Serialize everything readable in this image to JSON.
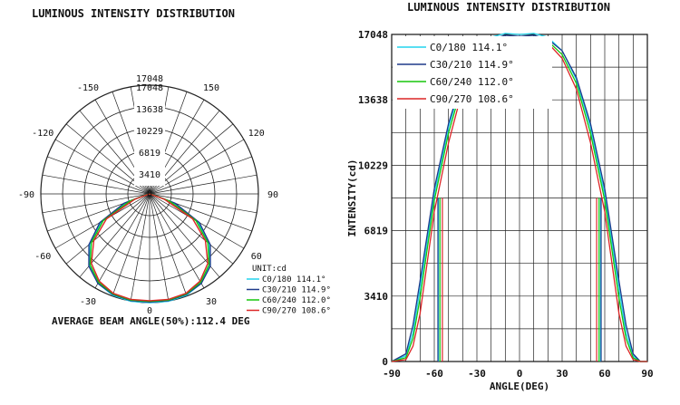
{
  "chart_data": [
    {
      "type": "polar",
      "title": "LUMINOUS INTENSITY DISTRIBUTION",
      "rings": [
        3410,
        6819,
        10229,
        13638,
        17048
      ],
      "ring_labels": [
        "3410",
        "6819",
        "10229",
        "13638",
        "17048"
      ],
      "angle_labels": [
        "-150",
        "150",
        "-120",
        "120",
        "-90",
        "90",
        "-60",
        "60",
        "-30",
        "30",
        "0",
        "0"
      ],
      "unit": "UNIT:cd",
      "rmax": 17048,
      "series": [
        {
          "name": "C0/180 114.1°",
          "color": "#22d3ee",
          "angles": [
            -90,
            -80,
            -70,
            -60,
            -50,
            -40,
            -30,
            -20,
            -10,
            0,
            10,
            20,
            30,
            40,
            50,
            60,
            70,
            80,
            90
          ],
          "values": [
            0,
            300,
            3800,
            8700,
            12200,
            14700,
            16200,
            16900,
            17100,
            17048,
            17100,
            16900,
            16200,
            14700,
            12200,
            8700,
            3800,
            300,
            0
          ]
        },
        {
          "name": "C30/210 114.9°",
          "color": "#1e3a8a",
          "angles": [
            -90,
            -80,
            -70,
            -60,
            -50,
            -40,
            -30,
            -20,
            -10,
            0,
            10,
            20,
            30,
            40,
            50,
            60,
            70,
            80,
            90
          ],
          "values": [
            0,
            400,
            4200,
            9000,
            12400,
            14800,
            16200,
            16800,
            17000,
            16950,
            17000,
            16800,
            16200,
            14800,
            12400,
            9000,
            4200,
            400,
            0
          ]
        },
        {
          "name": "C60/240 112.0°",
          "color": "#16c60c",
          "angles": [
            -90,
            -80,
            -70,
            -60,
            -50,
            -40,
            -30,
            -20,
            -10,
            0,
            10,
            20,
            30,
            40,
            50,
            60,
            70,
            80,
            90
          ],
          "values": [
            0,
            200,
            3300,
            8400,
            11900,
            14500,
            16000,
            16700,
            16900,
            16850,
            16900,
            16700,
            16000,
            14500,
            11900,
            8400,
            3300,
            200,
            0
          ]
        },
        {
          "name": "C90/270 108.6°",
          "color": "#dc2626",
          "angles": [
            -90,
            -80,
            -70,
            -60,
            -50,
            -40,
            -30,
            -20,
            -10,
            0,
            10,
            20,
            30,
            40,
            50,
            60,
            70,
            80,
            90
          ],
          "values": [
            0,
            100,
            2500,
            7800,
            11400,
            14200,
            15800,
            16600,
            16800,
            16750,
            16800,
            16600,
            15800,
            14200,
            11400,
            7800,
            2500,
            100,
            0
          ]
        }
      ],
      "annotation": "AVERAGE BEAM ANGLE(50%):112.4 DEG"
    },
    {
      "type": "line",
      "title": "LUMINOUS INTENSITY DISTRIBUTION",
      "xlabel": "ANGLE(DEG)",
      "ylabel": "INTENSITY(cd)",
      "xlim": [
        -90,
        90
      ],
      "ylim": [
        0,
        17048
      ],
      "xticks": [
        -90,
        -60,
        -30,
        0,
        30,
        60,
        90
      ],
      "xtick_labels": [
        "-90",
        "-60",
        "-30",
        "0",
        "30",
        "60",
        "90"
      ],
      "yticks": [
        0,
        3410,
        6819,
        10229,
        13638,
        17048
      ],
      "ytick_labels": [
        "0",
        "3410",
        "6819",
        "10229",
        "13638",
        "17048"
      ],
      "grid": true,
      "legend": "top-left",
      "series": [
        {
          "name": "C0/180 114.1°",
          "color": "#22d3ee",
          "x": [
            -90,
            -80,
            -75,
            -70,
            -60,
            -50,
            -40,
            -30,
            -20,
            -10,
            0,
            10,
            20,
            30,
            40,
            50,
            60,
            70,
            75,
            80,
            85,
            90
          ],
          "y": [
            0,
            300,
            1500,
            3800,
            8700,
            12200,
            14700,
            16200,
            16900,
            17100,
            17048,
            17100,
            16900,
            16200,
            14700,
            12200,
            8700,
            3800,
            1500,
            300,
            0,
            0
          ]
        },
        {
          "name": "C30/210 114.9°",
          "color": "#1e3a8a",
          "x": [
            -90,
            -80,
            -75,
            -70,
            -60,
            -50,
            -40,
            -30,
            -20,
            -10,
            0,
            10,
            20,
            30,
            40,
            50,
            60,
            70,
            75,
            80,
            85,
            90
          ],
          "y": [
            0,
            400,
            1900,
            4200,
            9000,
            12400,
            14800,
            16200,
            16800,
            17000,
            16950,
            17000,
            16800,
            16200,
            14800,
            12400,
            9000,
            4200,
            1900,
            400,
            0,
            0
          ]
        },
        {
          "name": "C60/240 112.0°",
          "color": "#16c60c",
          "x": [
            -90,
            -80,
            -75,
            -70,
            -60,
            -50,
            -40,
            -30,
            -20,
            -10,
            0,
            10,
            20,
            30,
            40,
            50,
            60,
            70,
            75,
            80,
            85,
            90
          ],
          "y": [
            0,
            200,
            1200,
            3300,
            8400,
            11900,
            14500,
            16000,
            16700,
            16900,
            16850,
            16900,
            16700,
            16000,
            14500,
            11900,
            8400,
            3300,
            1200,
            200,
            0,
            0
          ]
        },
        {
          "name": "C90/270 108.6°",
          "color": "#dc2626",
          "x": [
            -90,
            -80,
            -75,
            -70,
            -60,
            -50,
            -40,
            -30,
            -20,
            -10,
            0,
            10,
            20,
            30,
            40,
            50,
            60,
            70,
            75,
            80,
            85,
            90
          ],
          "y": [
            0,
            100,
            800,
            2500,
            7800,
            11400,
            14200,
            15800,
            16600,
            16800,
            16750,
            16800,
            16600,
            15800,
            14200,
            11400,
            7800,
            2500,
            800,
            100,
            0,
            0
          ]
        }
      ],
      "beam_lines": [
        {
          "color": "#22d3ee",
          "angle": -57.05
        },
        {
          "color": "#22d3ee",
          "angle": 57.05
        },
        {
          "color": "#1e3a8a",
          "angle": -57.45
        },
        {
          "color": "#1e3a8a",
          "angle": 57.45
        },
        {
          "color": "#16c60c",
          "angle": -56.0
        },
        {
          "color": "#16c60c",
          "angle": 56.0
        },
        {
          "color": "#dc2626",
          "angle": -54.3
        },
        {
          "color": "#dc2626",
          "angle": 54.3
        }
      ]
    }
  ]
}
